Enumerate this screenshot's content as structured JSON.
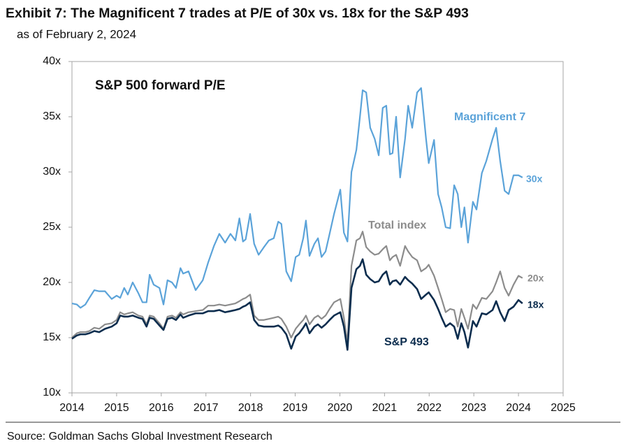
{
  "chart_data": {
    "type": "line",
    "title": "Exhibit 7: The Magnificent 7 trades at P/E of 30x vs. 18x for the S&P 493",
    "subtitle": "as of February 2, 2024",
    "panel_title": "S&P 500 forward P/E",
    "source": "Source: Goldman Sachs Global Investment Research",
    "annotations": [
      "30x",
      "20x",
      "18x"
    ],
    "x": [
      2014.0,
      2014.11,
      2014.19,
      2014.3,
      2014.39,
      2014.5,
      2014.61,
      2014.74,
      2014.89,
      2015.0,
      2015.08,
      2015.17,
      2015.25,
      2015.36,
      2015.49,
      2015.58,
      2015.67,
      2015.74,
      2015.83,
      2015.96,
      2016.05,
      2016.14,
      2016.24,
      2016.33,
      2016.43,
      2016.49,
      2016.61,
      2016.77,
      2016.93,
      2017.05,
      2017.18,
      2017.3,
      2017.43,
      2017.55,
      2017.66,
      2017.75,
      2017.83,
      2017.89,
      2017.99,
      2018.08,
      2018.18,
      2018.3,
      2018.41,
      2018.52,
      2018.62,
      2018.69,
      2018.8,
      2018.91,
      2019.01,
      2019.09,
      2019.18,
      2019.24,
      2019.32,
      2019.43,
      2019.51,
      2019.59,
      2019.68,
      2019.77,
      2019.87,
      2020.01,
      2020.09,
      2020.17,
      2020.26,
      2020.37,
      2020.45,
      2020.51,
      2020.59,
      2020.68,
      2020.78,
      2020.87,
      2020.96,
      2021.04,
      2021.12,
      2021.18,
      2021.26,
      2021.35,
      2021.46,
      2021.53,
      2021.62,
      2021.73,
      2021.82,
      2021.93,
      2021.99,
      2022.11,
      2022.2,
      2022.28,
      2022.37,
      2022.47,
      2022.56,
      2022.64,
      2022.72,
      2022.79,
      2022.87,
      2022.98,
      2023.06,
      2023.18,
      2023.28,
      2023.42,
      2023.5,
      2023.59,
      2023.69,
      2023.78,
      2023.89,
      2024.0,
      2024.09
    ],
    "series": [
      {
        "name": "Magnificent 7",
        "color": "#5ba3d9",
        "values": [
          18.1,
          18.0,
          17.7,
          18.0,
          18.6,
          19.3,
          19.2,
          19.2,
          18.5,
          18.8,
          18.6,
          19.5,
          18.9,
          20.0,
          19.0,
          18.2,
          18.2,
          20.7,
          19.8,
          19.5,
          18.0,
          20.2,
          20.0,
          19.5,
          21.3,
          20.8,
          21.0,
          19.3,
          20.2,
          21.8,
          23.3,
          24.4,
          23.6,
          24.4,
          23.8,
          25.8,
          23.7,
          23.9,
          26.2,
          23.5,
          22.5,
          23.2,
          23.8,
          24.0,
          25.5,
          25.3,
          21.0,
          20.1,
          22.3,
          22.5,
          24.0,
          25.6,
          22.4,
          23.5,
          24.0,
          22.3,
          22.8,
          24.4,
          26.2,
          28.4,
          24.5,
          23.7,
          30.0,
          32.0,
          35.0,
          37.4,
          37.2,
          34.0,
          33.0,
          31.5,
          35.8,
          36.0,
          31.6,
          31.7,
          35.0,
          29.5,
          33.0,
          36.0,
          34.0,
          37.2,
          37.6,
          33.0,
          30.8,
          32.9,
          28.0,
          26.8,
          25.0,
          24.9,
          28.8,
          28.0,
          25.0,
          26.8,
          23.6,
          27.3,
          26.6,
          29.9,
          31.0,
          33.0,
          34.0,
          31.0,
          28.3,
          28.0,
          29.7,
          29.7,
          29.5
        ]
      },
      {
        "name": "Total index",
        "color": "#8c8c8c",
        "values": [
          15.0,
          15.4,
          15.5,
          15.5,
          15.6,
          15.9,
          15.8,
          16.2,
          16.3,
          16.6,
          17.3,
          17.1,
          17.2,
          17.3,
          17.0,
          16.9,
          16.2,
          17.0,
          16.9,
          16.3,
          15.8,
          16.9,
          17.0,
          16.8,
          17.3,
          17.1,
          17.3,
          17.4,
          17.5,
          17.9,
          17.9,
          18.0,
          17.9,
          18.0,
          18.1,
          18.3,
          18.5,
          18.6,
          18.9,
          17.0,
          16.6,
          16.6,
          16.7,
          16.8,
          16.9,
          16.7,
          16.0,
          15.0,
          15.8,
          16.2,
          16.6,
          17.0,
          16.2,
          16.8,
          17.0,
          16.7,
          17.0,
          17.6,
          18.2,
          18.5,
          16.8,
          14.5,
          21.5,
          23.8,
          24.0,
          24.6,
          23.2,
          22.8,
          22.5,
          22.6,
          23.0,
          23.3,
          22.0,
          22.3,
          22.5,
          21.5,
          23.3,
          22.8,
          22.3,
          22.0,
          21.0,
          21.3,
          21.6,
          20.6,
          19.5,
          18.5,
          17.3,
          17.6,
          17.5,
          16.0,
          17.6,
          16.8,
          15.8,
          18.0,
          17.6,
          18.6,
          18.5,
          19.2,
          20.0,
          21.0,
          19.5,
          18.8,
          19.8,
          20.6,
          20.4
        ]
      },
      {
        "name": "S&P 493",
        "color": "#0c2d4e",
        "values": [
          14.9,
          15.2,
          15.3,
          15.3,
          15.4,
          15.6,
          15.5,
          15.8,
          16.0,
          16.3,
          17.0,
          16.9,
          16.9,
          17.0,
          16.8,
          16.7,
          16.0,
          16.8,
          16.7,
          16.1,
          15.7,
          16.7,
          16.8,
          16.6,
          17.1,
          16.8,
          17.0,
          17.2,
          17.2,
          17.4,
          17.4,
          17.5,
          17.3,
          17.4,
          17.5,
          17.6,
          17.8,
          17.9,
          18.2,
          16.6,
          16.1,
          16.0,
          16.0,
          16.0,
          16.1,
          15.9,
          15.3,
          14.0,
          15.1,
          15.4,
          15.9,
          16.3,
          15.4,
          16.0,
          16.2,
          15.9,
          16.2,
          16.6,
          17.0,
          17.3,
          16.0,
          13.9,
          19.5,
          21.2,
          21.5,
          22.1,
          20.7,
          20.3,
          20.0,
          20.1,
          20.7,
          21.0,
          19.8,
          20.1,
          20.2,
          19.8,
          20.5,
          20.2,
          19.9,
          19.4,
          18.5,
          18.9,
          19.1,
          18.4,
          17.6,
          16.8,
          16.0,
          16.3,
          16.0,
          14.9,
          16.3,
          15.5,
          14.1,
          16.5,
          16.0,
          17.2,
          17.1,
          17.5,
          18.3,
          17.3,
          16.5,
          17.5,
          17.8,
          18.4,
          18.1
        ]
      }
    ],
    "xlim": [
      2014,
      2025
    ],
    "xticks": [
      2014,
      2015,
      2016,
      2017,
      2018,
      2019,
      2020,
      2021,
      2022,
      2023,
      2024,
      2025
    ],
    "ylim": [
      10,
      40
    ],
    "yticks": [
      {
        "value": 10,
        "label": "10x"
      },
      {
        "value": 15,
        "label": "15x"
      },
      {
        "value": 20,
        "label": "20x"
      },
      {
        "value": 25,
        "label": "25x"
      },
      {
        "value": 30,
        "label": "30x"
      },
      {
        "value": 35,
        "label": "35x"
      },
      {
        "value": 40,
        "label": "40x"
      }
    ],
    "grid": false
  }
}
